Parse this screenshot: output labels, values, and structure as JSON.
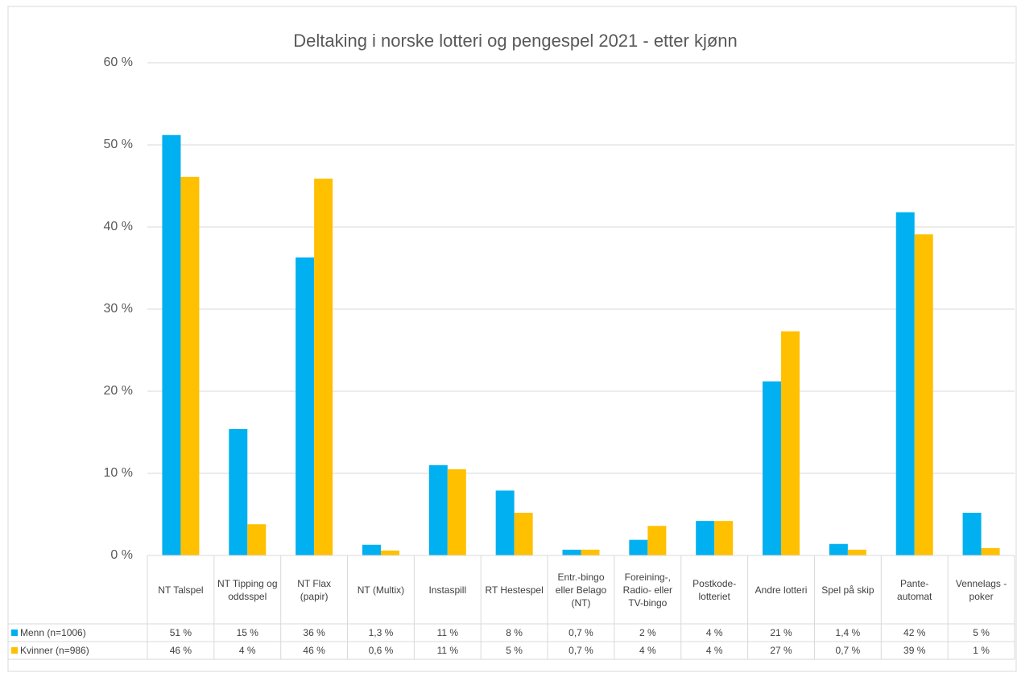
{
  "chart_data": {
    "type": "bar",
    "title": "Deltaking i norske lotteri og pengespel 2021 - etter kjønn",
    "categories": [
      "NT Talspel",
      "NT Tipping og oddsspel",
      "NT Flax (papir)",
      "NT (Multix)",
      "Instaspill",
      "RT Hestespel",
      "Entr.-bingo eller Belago (NT)",
      "Foreining-, Radio- eller TV-bingo",
      "Postkode-lotteriet",
      "Andre lotteri",
      "Spel på skip",
      "Pante-automat",
      "Vennelags -poker"
    ],
    "series": [
      {
        "name": "Menn (n=1006)",
        "color": "#00b0f0",
        "values": [
          51.2,
          15.4,
          36.3,
          1.3,
          11,
          7.9,
          0.7,
          1.9,
          4.2,
          21.2,
          1.4,
          41.8,
          5.2
        ],
        "value_labels": [
          "51 %",
          "15 %",
          "36 %",
          "1,3 %",
          "11 %",
          "8 %",
          "0,7 %",
          "2 %",
          "4 %",
          "21 %",
          "1,4 %",
          "42 %",
          "5 %"
        ]
      },
      {
        "name": "Kvinner (n=986)",
        "color": "#ffc000",
        "values": [
          46.1,
          3.8,
          45.9,
          0.6,
          10.5,
          5.2,
          0.7,
          3.6,
          4.2,
          27.3,
          0.7,
          39.1,
          0.9
        ],
        "value_labels": [
          "46 %",
          "4 %",
          "46 %",
          "0,6 %",
          "11 %",
          "5 %",
          "0,7 %",
          "4 %",
          "4 %",
          "27 %",
          "0,7 %",
          "39 %",
          "1 %"
        ]
      }
    ],
    "ylim": [
      0,
      60
    ],
    "yticks": [
      {
        "value": 0,
        "label": "0 %"
      },
      {
        "value": 10,
        "label": "10 %"
      },
      {
        "value": 20,
        "label": "20 %"
      },
      {
        "value": 30,
        "label": "30 %"
      },
      {
        "value": 40,
        "label": "40 %"
      },
      {
        "value": 50,
        "label": "50 %"
      },
      {
        "value": 60,
        "label": "60 %"
      }
    ],
    "grid": true
  }
}
